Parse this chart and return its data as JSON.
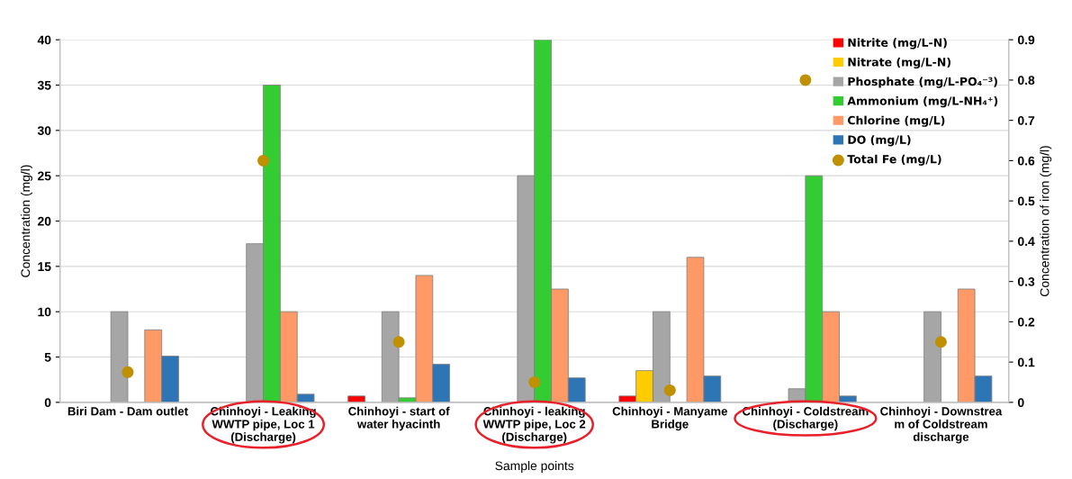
{
  "chart_data": {
    "type": "bar",
    "xlabel": "Sample points",
    "ylabel": "Concentration (mg/l)",
    "y2label": "Concentration of iron (mg/l)",
    "categories": [
      "Biri Dam - Dam outlet",
      "Chinhoyi - Leaking WWTP pipe, Loc 1 (Discharge)",
      "Chinhoyi - start of water hyacinth",
      "Chinhoyi - leaking WWTP pipe, Loc 2 (Discharge)",
      "Chinhoyi - Manyame Bridge",
      "Chinhoyi - Coldstream (Discharge)",
      "Chinhoyi - Downstrea m of Coldstream discharge"
    ],
    "series": [
      {
        "name": "Nitrite (mg/L-N)",
        "color": "#ff0000",
        "values": [
          null,
          null,
          0.7,
          null,
          0.7,
          null,
          null
        ]
      },
      {
        "name": "Nitrate (mg/L-N)",
        "color": "#ffcc00",
        "values": [
          null,
          null,
          null,
          null,
          3.5,
          null,
          null
        ]
      },
      {
        "name": "Phosphate (mg/L-PO₄⁻³)",
        "color": "#a6a6a6",
        "values": [
          10,
          17.5,
          10,
          25,
          10,
          1.5,
          10
        ]
      },
      {
        "name": "Ammonium (mg/L-NH₄⁺)",
        "color": "#33cc33",
        "values": [
          null,
          35,
          0.5,
          40,
          null,
          25,
          null
        ]
      },
      {
        "name": "Chlorine (mg/L)",
        "color": "#ff9966",
        "values": [
          8,
          10,
          14,
          12.5,
          16,
          10,
          12.5
        ]
      },
      {
        "name": "DO (mg/L)",
        "color": "#2e75b6",
        "values": [
          5.1,
          0.9,
          4.2,
          2.7,
          2.9,
          0.7,
          2.9
        ]
      },
      {
        "name": "Total Fe (mg/L)",
        "color": "#bf9000",
        "type": "scatter",
        "axis": "y2",
        "marker": "circle",
        "values": [
          0.075,
          0.6,
          0.15,
          0.05,
          0.03,
          0.8,
          0.15
        ]
      }
    ],
    "ylim": [
      0,
      40
    ],
    "yticks": [
      0,
      5,
      10,
      15,
      20,
      25,
      30,
      35,
      40
    ],
    "y2lim": [
      0,
      0.9
    ],
    "y2ticks": [
      0,
      0.1,
      0.2,
      0.3,
      0.4,
      0.5,
      0.6,
      0.7,
      0.8,
      0.9
    ],
    "grid": "y",
    "legend": "top right"
  }
}
